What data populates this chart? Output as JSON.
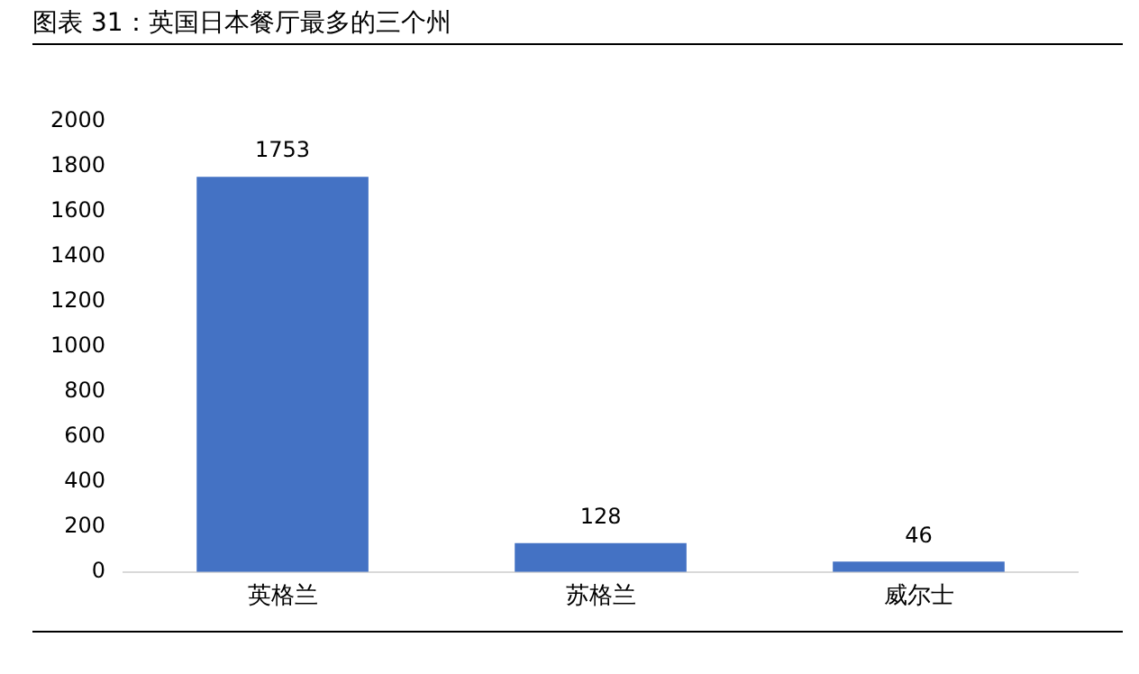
{
  "chart_data": {
    "type": "bar",
    "title": "图表 31：英国日本餐厅最多的三个州",
    "categories": [
      "英格兰",
      "苏格兰",
      "威尔士"
    ],
    "values": [
      1753,
      128,
      46
    ],
    "color": "#4472c4",
    "ylim": [
      0,
      2000
    ],
    "yticks": [
      0,
      200,
      400,
      600,
      800,
      1000,
      1200,
      1400,
      1600,
      1800,
      2000
    ],
    "grid": false,
    "data_labels": true
  }
}
